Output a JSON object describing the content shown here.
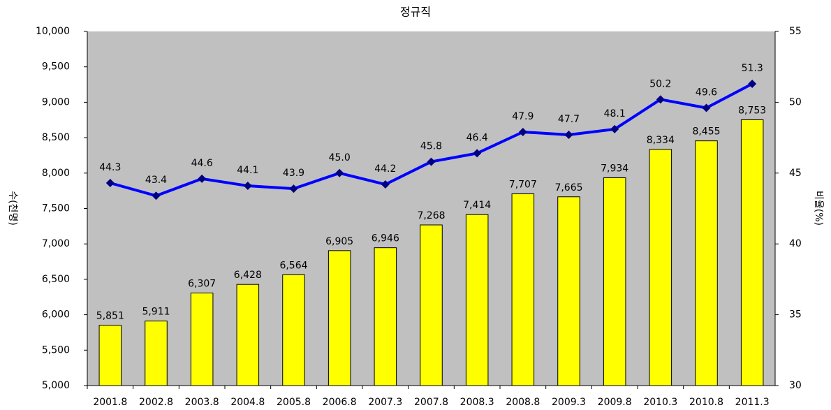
{
  "chart_data": {
    "type": "bar",
    "title": "정규직",
    "y_label": "수(천명)",
    "y2_label": "비율(%)",
    "categories": [
      "2001.8",
      "2002.8",
      "2003.8",
      "2004.8",
      "2005.8",
      "2006.8",
      "2007.3",
      "2007.8",
      "2008.3",
      "2008.8",
      "2009.3",
      "2009.8",
      "2010.3",
      "2010.8",
      "2011.3"
    ],
    "series": [
      {
        "type": "bar",
        "color": "#ffff00",
        "values": [
          5851,
          5911,
          6307,
          6428,
          6564,
          6905,
          6946,
          7268,
          7414,
          7707,
          7665,
          7934,
          8334,
          8455,
          8753
        ],
        "value_labels": [
          "5,851",
          "5,911",
          "6,307",
          "6,428",
          "6,564",
          "6,905",
          "6,946",
          "7,268",
          "7,414",
          "7,707",
          "7,665",
          "7,934",
          "8,334",
          "8,455",
          "8,753"
        ]
      },
      {
        "type": "line",
        "axis": "y2",
        "color": "#0000ff",
        "marker_color": "#000080",
        "values": [
          44.3,
          43.4,
          44.6,
          44.1,
          43.9,
          45.0,
          44.2,
          45.8,
          46.4,
          47.9,
          47.7,
          48.1,
          50.2,
          49.6,
          51.3
        ],
        "value_labels": [
          "44.3",
          "43.4",
          "44.6",
          "44.1",
          "43.9",
          "45.0",
          "44.2",
          "45.8",
          "46.4",
          "47.9",
          "47.7",
          "48.1",
          "50.2",
          "49.6",
          "51.3"
        ]
      }
    ],
    "ylim": [
      5000,
      10000
    ],
    "yticks": [
      {
        "value": 5000,
        "label": "5,000"
      },
      {
        "value": 5500,
        "label": "5,500"
      },
      {
        "value": 6000,
        "label": "6,000"
      },
      {
        "value": 6500,
        "label": "6,500"
      },
      {
        "value": 7000,
        "label": "7,000"
      },
      {
        "value": 7500,
        "label": "7,500"
      },
      {
        "value": 8000,
        "label": "8,000"
      },
      {
        "value": 8500,
        "label": "8,500"
      },
      {
        "value": 9000,
        "label": "9,000"
      },
      {
        "value": 9500,
        "label": "9,500"
      },
      {
        "value": 10000,
        "label": "10,000"
      }
    ],
    "y2lim": [
      30,
      55
    ],
    "y2ticks": [
      30,
      35,
      40,
      45,
      50,
      55
    ],
    "plot_background": "#c0c0c0",
    "grid": false
  }
}
